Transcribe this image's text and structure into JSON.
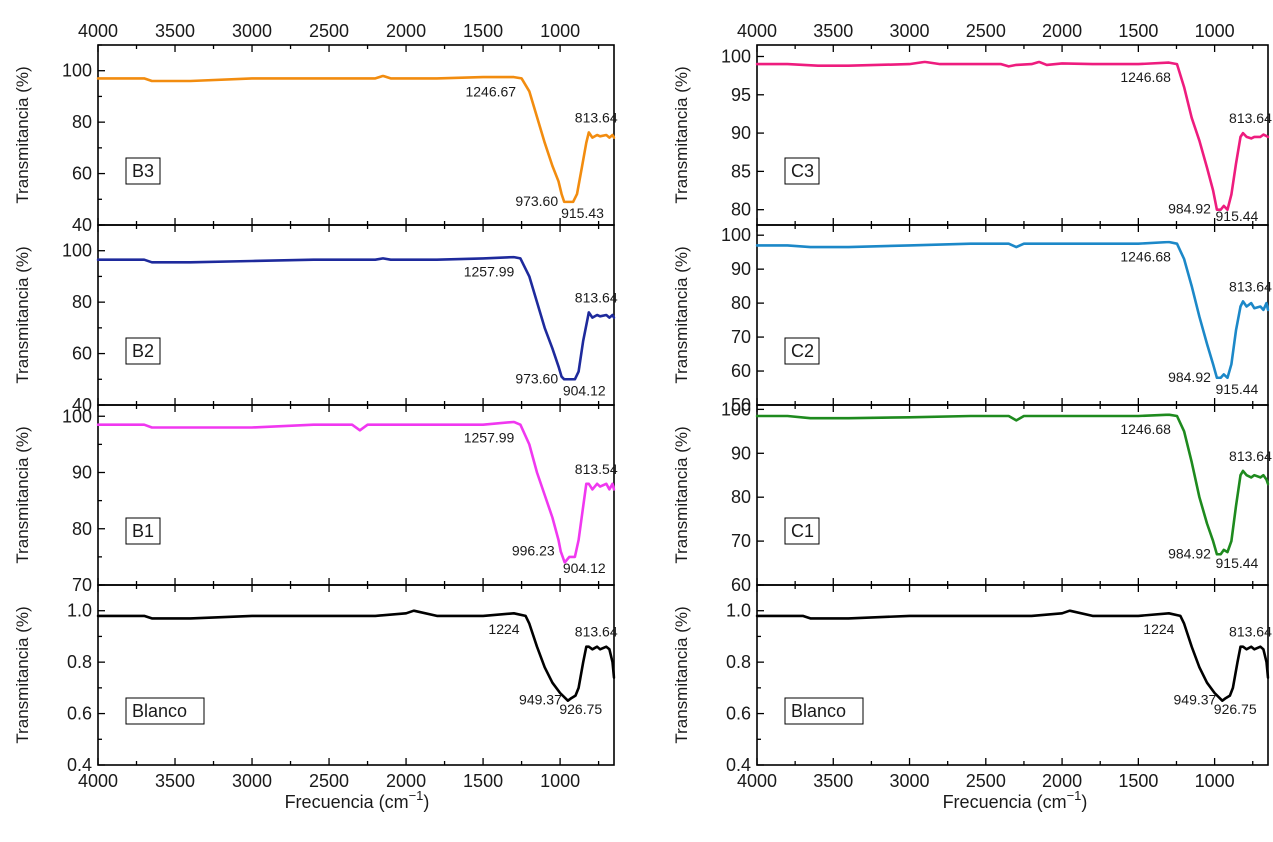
{
  "figure": {
    "xlabel": "Frecuencia (cm",
    "xlabel_sup": "−1",
    "xlabel_close": ")"
  },
  "chart_data": [
    {
      "column": "left",
      "row": 0,
      "type": "line",
      "label": "B3",
      "color": "#F28C0F",
      "ylabel": "Transmitancia (%)",
      "xlim": [
        4000,
        650
      ],
      "ylim": [
        40,
        110
      ],
      "xticks": [
        4000,
        3500,
        3000,
        2500,
        2000,
        1500,
        1000
      ],
      "yticks": [
        40,
        60,
        80,
        100
      ],
      "yminor": 10,
      "top_axis_labels": true,
      "bottom_axis_labels": false,
      "series": [
        {
          "x": [
            4000,
            3800,
            3700,
            3650,
            3600,
            3400,
            3000,
            2600,
            2200,
            2150,
            2100,
            1800,
            1500,
            1300,
            1250,
            1200,
            1150,
            1100,
            1050,
            1010,
            990,
            973.6,
            950,
            915.43,
            890,
            860,
            830,
            813.64,
            790,
            760,
            740,
            700,
            680,
            660,
            650
          ],
          "y": [
            97,
            97,
            97,
            96,
            96,
            96,
            97,
            97,
            97,
            98,
            97,
            97,
            97.5,
            97.5,
            97,
            92,
            82,
            72,
            63,
            57,
            52,
            49,
            49,
            49,
            52,
            62,
            72,
            76,
            74,
            75,
            74.5,
            75,
            74,
            75,
            74
          ]
        }
      ],
      "annotations": [
        "1246.67",
        "813.64",
        "973.60",
        "915.43"
      ]
    },
    {
      "column": "left",
      "row": 1,
      "type": "line",
      "label": "B2",
      "color": "#1E2A9C",
      "ylabel": "Transmitancia (%)",
      "xlim": [
        4000,
        650
      ],
      "ylim": [
        40,
        110
      ],
      "xticks": [
        4000,
        3500,
        3000,
        2500,
        2000,
        1500,
        1000
      ],
      "yticks": [
        40,
        60,
        80,
        100
      ],
      "yminor": 10,
      "top_axis_labels": false,
      "bottom_axis_labels": false,
      "series": [
        {
          "x": [
            4000,
            3800,
            3700,
            3650,
            3600,
            3400,
            3000,
            2600,
            2200,
            2150,
            2100,
            1800,
            1500,
            1300,
            1257.99,
            1200,
            1150,
            1100,
            1050,
            1010,
            990,
            973.6,
            950,
            904.12,
            880,
            850,
            820,
            813.64,
            790,
            760,
            740,
            700,
            680,
            660,
            650
          ],
          "y": [
            96.5,
            96.5,
            96.5,
            95.5,
            95.5,
            95.5,
            96,
            96.5,
            96.5,
            97,
            96.5,
            96.5,
            97,
            97.5,
            97,
            90,
            80,
            70,
            62,
            55,
            51,
            50,
            50,
            50,
            53,
            65,
            74,
            76,
            74,
            75,
            74.5,
            75,
            74,
            75,
            74
          ]
        }
      ],
      "annotations": [
        "1257.99",
        "813.64",
        "973.60",
        "904.12"
      ]
    },
    {
      "column": "left",
      "row": 2,
      "type": "line",
      "label": "B1",
      "color": "#F038F0",
      "ylabel": "Transmitancia (%)",
      "xlim": [
        4000,
        650
      ],
      "ylim": [
        70,
        102
      ],
      "xticks": [
        4000,
        3500,
        3000,
        2500,
        2000,
        1500,
        1000
      ],
      "yticks": [
        70,
        80,
        90,
        100
      ],
      "yminor": 5,
      "top_axis_labels": false,
      "bottom_axis_labels": false,
      "series": [
        {
          "x": [
            4000,
            3800,
            3700,
            3650,
            3600,
            3400,
            3000,
            2600,
            2350,
            2300,
            2250,
            2000,
            1700,
            1500,
            1300,
            1257.99,
            1200,
            1150,
            1100,
            1050,
            1010,
            996.23,
            970,
            940,
            904.12,
            880,
            850,
            830,
            813.54,
            790,
            760,
            740,
            700,
            680,
            660,
            650
          ],
          "y": [
            98.5,
            98.5,
            98.5,
            98,
            98,
            98,
            98,
            98.5,
            98.5,
            97.5,
            98.5,
            98.5,
            98.5,
            98.5,
            99,
            98.5,
            95,
            90,
            86,
            82,
            78,
            76,
            74,
            75,
            75,
            78,
            84,
            88,
            88,
            87,
            88,
            87.5,
            88,
            87,
            88,
            87
          ]
        }
      ],
      "annotations": [
        "1257.99",
        "813.54",
        "996.23",
        "904.12"
      ]
    },
    {
      "column": "left",
      "row": 3,
      "type": "line",
      "label": "Blanco",
      "color": "#000000",
      "ylabel": "Transmitancia (%)",
      "xlim": [
        4000,
        650
      ],
      "ylim": [
        0.4,
        1.1
      ],
      "xticks": [
        4000,
        3500,
        3000,
        2500,
        2000,
        1500,
        1000
      ],
      "yticks": [
        0.4,
        0.6,
        0.8,
        1.0
      ],
      "yminor": 0.1,
      "top_axis_labels": false,
      "bottom_axis_labels": true,
      "series": [
        {
          "x": [
            4000,
            3800,
            3700,
            3650,
            3600,
            3400,
            3000,
            2600,
            2200,
            2000,
            1950,
            1800,
            1500,
            1300,
            1224,
            1200,
            1150,
            1100,
            1050,
            1000,
            949.37,
            926.75,
            900,
            880,
            850,
            830,
            813.64,
            790,
            760,
            740,
            700,
            680,
            660,
            650
          ],
          "y": [
            0.98,
            0.98,
            0.98,
            0.97,
            0.97,
            0.97,
            0.98,
            0.98,
            0.98,
            0.99,
            1.0,
            0.98,
            0.98,
            0.99,
            0.98,
            0.95,
            0.86,
            0.78,
            0.72,
            0.68,
            0.65,
            0.66,
            0.67,
            0.7,
            0.8,
            0.86,
            0.86,
            0.85,
            0.86,
            0.85,
            0.86,
            0.85,
            0.8,
            0.74
          ]
        }
      ],
      "annotations": [
        "1224",
        "813.64",
        "949.37",
        "926.75"
      ]
    },
    {
      "column": "right",
      "row": 0,
      "type": "line",
      "label": "C3",
      "color": "#EE1C7E",
      "ylabel": "Transmitancia (%)",
      "xlim": [
        4000,
        650
      ],
      "ylim": [
        78,
        101.5
      ],
      "xticks": [
        4000,
        3500,
        3000,
        2500,
        2000,
        1500,
        1000
      ],
      "yticks": [
        80,
        85,
        90,
        95,
        100
      ],
      "yminor": null,
      "top_axis_labels": true,
      "bottom_axis_labels": false,
      "series": [
        {
          "x": [
            4000,
            3800,
            3600,
            3400,
            3000,
            2900,
            2800,
            2400,
            2350,
            2300,
            2200,
            2150,
            2100,
            2000,
            1800,
            1500,
            1300,
            1246.68,
            1200,
            1150,
            1100,
            1050,
            1010,
            984.92,
            960,
            940,
            915.44,
            890,
            860,
            830,
            813.64,
            790,
            760,
            740,
            700,
            680,
            660,
            650
          ],
          "y": [
            99,
            99,
            98.8,
            98.8,
            99,
            99.3,
            99,
            99,
            98.7,
            98.9,
            99,
            99.3,
            98.9,
            99.1,
            99,
            99,
            99.2,
            99,
            96,
            92,
            89,
            85.5,
            82.5,
            80,
            80,
            80.5,
            80,
            82,
            86,
            89.5,
            90,
            89.5,
            89.3,
            89.5,
            89.5,
            89.8,
            89.6,
            89.5
          ]
        }
      ],
      "annotations": [
        "1246.68",
        "813.64",
        "984.92",
        "915.44"
      ]
    },
    {
      "column": "right",
      "row": 1,
      "type": "line",
      "label": "C2",
      "color": "#1C88C8",
      "ylabel": "Transmitancia (%)",
      "xlim": [
        4000,
        650
      ],
      "ylim": [
        50,
        103
      ],
      "xticks": [
        4000,
        3500,
        3000,
        2500,
        2000,
        1500,
        1000
      ],
      "yticks": [
        50,
        60,
        70,
        80,
        90,
        100
      ],
      "yminor": null,
      "top_axis_labels": false,
      "bottom_axis_labels": false,
      "series": [
        {
          "x": [
            4000,
            3800,
            3650,
            3600,
            3400,
            3000,
            2600,
            2350,
            2300,
            2250,
            2000,
            1700,
            1500,
            1300,
            1246.68,
            1200,
            1150,
            1100,
            1050,
            1010,
            984.92,
            960,
            940,
            915.44,
            890,
            860,
            830,
            813.64,
            790,
            760,
            740,
            700,
            680,
            660,
            650
          ],
          "y": [
            97,
            97,
            96.5,
            96.5,
            96.5,
            97,
            97.5,
            97.5,
            96.5,
            97.5,
            97.5,
            97.5,
            97.5,
            98,
            97.5,
            93,
            85,
            76,
            68,
            62,
            58,
            58,
            59,
            58,
            62,
            72,
            79,
            80.5,
            79,
            80,
            78.5,
            79,
            78,
            80,
            78
          ]
        }
      ],
      "annotations": [
        "1246.68",
        "813.64",
        "984.92",
        "915.44"
      ]
    },
    {
      "column": "right",
      "row": 2,
      "type": "line",
      "label": "C1",
      "color": "#1E8A1E",
      "ylabel": "Transmitancia (%)",
      "xlim": [
        4000,
        650
      ],
      "ylim": [
        60,
        101
      ],
      "xticks": [
        4000,
        3500,
        3000,
        2500,
        2000,
        1500,
        1000
      ],
      "yticks": [
        60,
        70,
        80,
        90,
        100
      ],
      "yminor": null,
      "top_axis_labels": false,
      "bottom_axis_labels": false,
      "series": [
        {
          "x": [
            4000,
            3800,
            3650,
            3600,
            3400,
            3000,
            2600,
            2350,
            2300,
            2250,
            2000,
            1700,
            1500,
            1300,
            1246.68,
            1200,
            1150,
            1100,
            1050,
            1010,
            984.92,
            960,
            940,
            915.44,
            890,
            860,
            830,
            813.64,
            790,
            760,
            740,
            700,
            680,
            660,
            650
          ],
          "y": [
            98.5,
            98.5,
            98,
            98,
            98,
            98.2,
            98.5,
            98.5,
            97.5,
            98.5,
            98.5,
            98.5,
            98.5,
            98.8,
            98.5,
            95,
            88,
            80,
            74,
            70,
            67,
            67,
            68,
            67.5,
            70,
            78,
            85,
            86,
            85,
            84.5,
            85,
            84.5,
            85,
            84,
            83
          ]
        }
      ],
      "annotations": [
        "1246.68",
        "813.64",
        "984.92",
        "915.44"
      ]
    },
    {
      "column": "right",
      "row": 3,
      "type": "line",
      "label": "Blanco",
      "color": "#000000",
      "ylabel": "Transmitancia (%)",
      "xlim": [
        4000,
        650
      ],
      "ylim": [
        0.4,
        1.1
      ],
      "xticks": [
        4000,
        3500,
        3000,
        2500,
        2000,
        1500,
        1000
      ],
      "yticks": [
        0.4,
        0.6,
        0.8,
        1.0
      ],
      "yminor": 0.1,
      "top_axis_labels": false,
      "bottom_axis_labels": true,
      "series": [
        {
          "x": [
            4000,
            3800,
            3700,
            3650,
            3600,
            3400,
            3000,
            2600,
            2200,
            2000,
            1950,
            1800,
            1500,
            1300,
            1224,
            1200,
            1150,
            1100,
            1050,
            1000,
            949.37,
            926.75,
            900,
            880,
            850,
            830,
            813.64,
            790,
            760,
            740,
            700,
            680,
            660,
            650
          ],
          "y": [
            0.98,
            0.98,
            0.98,
            0.97,
            0.97,
            0.97,
            0.98,
            0.98,
            0.98,
            0.99,
            1.0,
            0.98,
            0.98,
            0.99,
            0.98,
            0.95,
            0.86,
            0.78,
            0.72,
            0.68,
            0.65,
            0.66,
            0.67,
            0.7,
            0.8,
            0.86,
            0.86,
            0.85,
            0.86,
            0.85,
            0.86,
            0.85,
            0.8,
            0.74
          ]
        }
      ],
      "annotations": [
        "1224",
        "813.64",
        "949.37",
        "926.75"
      ]
    }
  ]
}
